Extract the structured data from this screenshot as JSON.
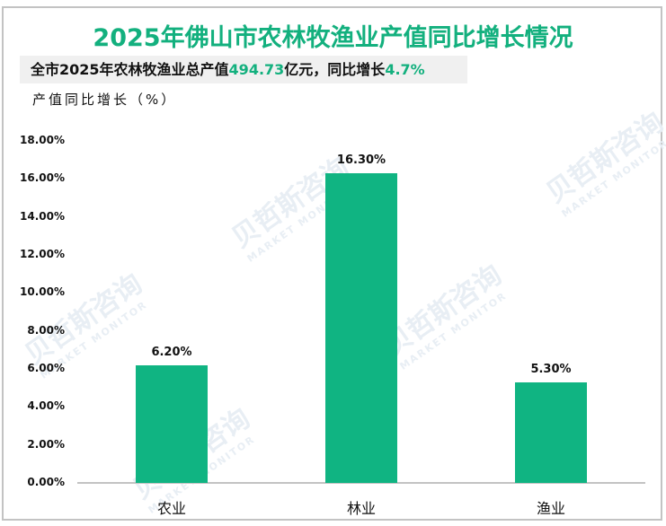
{
  "title": "2025年佛山市农林牧渔业产值同比增长情况",
  "subtitle": {
    "prefix": "全市2025年农林牧渔业总产值",
    "value": "494.73",
    "middle": "亿元，同比增长",
    "growth": "4.7%"
  },
  "ylabel": "产值同比增长（%）",
  "watermark": {
    "cn": "贝哲斯咨询",
    "en": "MARKET MONITOR"
  },
  "colors": {
    "bar": "#10b482",
    "accent": "#13b07e",
    "axis": "#c3c3c3"
  },
  "chart_data": {
    "type": "bar",
    "title": "2025年佛山市农林牧渔业产值同比增长情况",
    "xlabel": "",
    "ylabel": "产值同比增长（%）",
    "categories": [
      "农业",
      "林业",
      "渔业"
    ],
    "values": [
      6.2,
      16.3,
      5.3
    ],
    "value_labels": [
      "6.20%",
      "16.30%",
      "5.30%"
    ],
    "ylim": [
      0,
      18
    ],
    "yticks": [
      "0.00%",
      "2.00%",
      "4.00%",
      "6.00%",
      "8.00%",
      "10.00%",
      "12.00%",
      "14.00%",
      "16.00%",
      "18.00%"
    ],
    "grid": false,
    "legend": "none"
  }
}
